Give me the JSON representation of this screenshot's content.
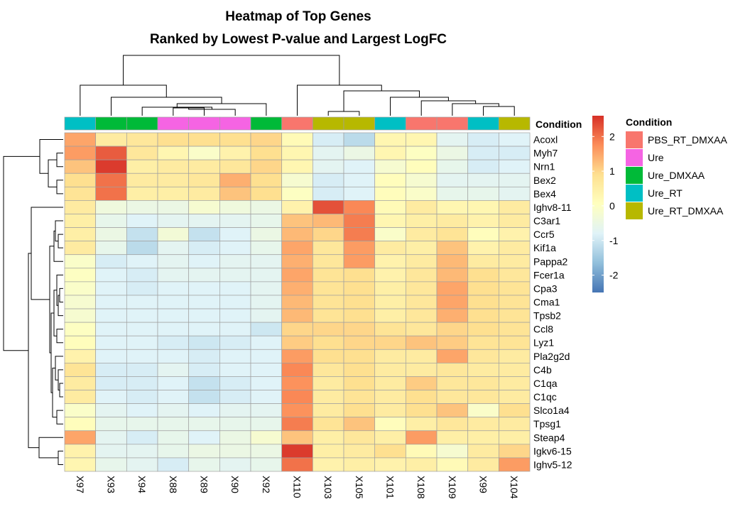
{
  "chart_data": {
    "type": "heatmap",
    "title": [
      "Heatmap of Top Genes",
      "Ranked by Lowest P-value and Largest LogFC"
    ],
    "columns": [
      "X97",
      "X93",
      "X94",
      "X88",
      "X89",
      "X90",
      "X92",
      "X110",
      "X103",
      "X105",
      "X101",
      "X108",
      "X109",
      "X99",
      "X104"
    ],
    "rows": [
      "Acoxl",
      "Myh7",
      "Nrn1",
      "Bex2",
      "Bex4",
      "Ighv8-11",
      "C3ar1",
      "Ccr5",
      "Kif1a",
      "Pappa2",
      "Fcer1a",
      "Cpa3",
      "Cma1",
      "Tpsb2",
      "Ccl8",
      "Lyz1",
      "Pla2g2d",
      "C4b",
      "C1qa",
      "C1qc",
      "Slco1a4",
      "Tpsg1",
      "Steap4",
      "Igkv6-15",
      "Ighv5-12"
    ],
    "values": [
      [
        1.5,
        0.6,
        0.7,
        0.9,
        0.9,
        0.9,
        1.0,
        0.2,
        -0.9,
        -1.2,
        0.3,
        0.3,
        -0.7,
        -0.9,
        -0.8
      ],
      [
        1.6,
        2.2,
        0.7,
        0.3,
        -0.1,
        0.4,
        0.9,
        0.3,
        -0.7,
        -0.5,
        0.3,
        0.0,
        -0.5,
        -0.9,
        -0.9
      ],
      [
        1.2,
        2.5,
        0.5,
        0.6,
        0.6,
        0.7,
        1.0,
        0.3,
        -0.7,
        -0.8,
        -0.2,
        0.1,
        -0.6,
        -0.9,
        -0.8
      ],
      [
        0.9,
        2.0,
        0.6,
        0.6,
        0.7,
        1.4,
        0.9,
        -0.2,
        -0.9,
        -0.8,
        0.1,
        -0.2,
        -0.7,
        -0.7,
        -0.7
      ],
      [
        0.8,
        2.0,
        0.5,
        0.5,
        0.6,
        1.2,
        0.9,
        0.0,
        -0.9,
        -0.8,
        0.1,
        -0.1,
        -0.6,
        -0.6,
        -0.7
      ],
      [
        0.6,
        -0.4,
        -0.5,
        -0.5,
        -0.2,
        -0.4,
        -0.5,
        0.4,
        2.3,
        1.8,
        0.2,
        0.6,
        0.3,
        0.3,
        0.6
      ],
      [
        0.5,
        -0.6,
        -0.8,
        -0.7,
        -0.7,
        -0.7,
        -0.6,
        1.2,
        1.3,
        1.9,
        0.3,
        0.5,
        0.6,
        0.4,
        0.6
      ],
      [
        0.5,
        -0.5,
        -1.1,
        -0.3,
        -1.1,
        -0.8,
        -0.5,
        1.3,
        1.0,
        1.9,
        -0.1,
        0.6,
        0.8,
        0.1,
        0.4
      ],
      [
        0.6,
        -0.6,
        -1.2,
        -0.7,
        -0.9,
        -0.8,
        -0.6,
        1.5,
        0.7,
        1.6,
        0.6,
        0.5,
        1.2,
        0.4,
        0.6
      ],
      [
        -0.1,
        -0.9,
        -0.8,
        -0.7,
        -0.8,
        -0.7,
        -0.7,
        1.4,
        0.7,
        1.6,
        0.4,
        0.6,
        1.3,
        0.6,
        0.6
      ],
      [
        0.0,
        -0.8,
        -0.9,
        -0.7,
        -0.7,
        -0.7,
        -0.7,
        1.5,
        0.8,
        0.9,
        0.4,
        0.7,
        1.3,
        0.9,
        0.7
      ],
      [
        -0.1,
        -0.8,
        -0.9,
        -0.8,
        -0.8,
        -0.8,
        -0.7,
        1.4,
        0.8,
        0.9,
        0.5,
        0.7,
        1.5,
        0.9,
        0.8
      ],
      [
        -0.2,
        -0.8,
        -0.8,
        -0.8,
        -0.8,
        -0.8,
        -0.7,
        1.3,
        0.8,
        0.9,
        0.5,
        0.7,
        1.5,
        0.9,
        0.8
      ],
      [
        -0.2,
        -0.8,
        -0.8,
        -0.8,
        -0.8,
        -0.8,
        -0.7,
        1.3,
        0.8,
        0.9,
        0.5,
        0.7,
        1.4,
        0.9,
        0.8
      ],
      [
        0.0,
        -0.8,
        -0.8,
        -0.8,
        -0.8,
        -0.8,
        -1.0,
        1.0,
        1.0,
        1.0,
        0.8,
        0.7,
        1.0,
        0.9,
        0.8
      ],
      [
        0.1,
        -0.8,
        -0.8,
        -0.9,
        -1.0,
        -0.9,
        -0.8,
        1.1,
        0.9,
        1.0,
        1.0,
        1.2,
        1.1,
        0.8,
        0.8
      ],
      [
        0.4,
        -0.8,
        -0.8,
        -0.8,
        -0.9,
        -0.8,
        -0.8,
        1.6,
        0.9,
        0.9,
        0.6,
        0.6,
        1.5,
        0.7,
        0.6
      ],
      [
        0.8,
        -0.9,
        -0.9,
        -0.7,
        -0.9,
        -0.8,
        -0.8,
        1.8,
        0.7,
        0.9,
        0.6,
        0.6,
        0.7,
        0.6,
        0.6
      ],
      [
        0.6,
        -0.9,
        -0.9,
        -0.8,
        -1.1,
        -0.9,
        -0.8,
        1.7,
        0.6,
        0.9,
        0.6,
        1.1,
        0.7,
        0.7,
        0.6
      ],
      [
        0.6,
        -0.8,
        -0.9,
        -0.8,
        -1.1,
        -0.9,
        -0.8,
        1.8,
        0.6,
        0.8,
        0.6,
        0.9,
        0.7,
        0.7,
        0.6
      ],
      [
        -0.1,
        -0.7,
        -0.8,
        -0.7,
        -0.8,
        -0.7,
        -0.7,
        1.7,
        0.6,
        0.9,
        0.6,
        0.9,
        1.2,
        -0.1,
        0.9
      ],
      [
        0.1,
        -0.6,
        -0.6,
        -0.6,
        -0.6,
        -0.6,
        -0.6,
        1.9,
        0.8,
        1.2,
        0.1,
        0.5,
        0.7,
        0.6,
        0.6
      ],
      [
        1.5,
        -0.7,
        -0.9,
        -0.6,
        -0.8,
        -0.5,
        -0.2,
        1.2,
        0.5,
        0.7,
        0.5,
        1.6,
        0.5,
        0.5,
        0.5
      ],
      [
        0.4,
        -0.7,
        -0.7,
        -0.6,
        -0.5,
        -0.5,
        -0.5,
        2.5,
        0.5,
        0.6,
        0.9,
        0.2,
        -0.2,
        0.6,
        1.0
      ],
      [
        0.3,
        -0.6,
        -0.7,
        -0.9,
        -0.6,
        -0.7,
        -0.6,
        2.0,
        0.4,
        0.5,
        0.4,
        0.5,
        0.2,
        0.6,
        1.6
      ]
    ],
    "column_conditions": [
      "Ure_RT",
      "Ure_DMXAA",
      "Ure_DMXAA",
      "Ure",
      "Ure",
      "Ure",
      "Ure_DMXAA",
      "PBS_RT_DMXAA",
      "Ure_RT_DMXAA",
      "Ure_RT_DMXAA",
      "Ure_RT",
      "PBS_RT_DMXAA",
      "PBS_RT_DMXAA",
      "Ure_RT",
      "Ure_RT_DMXAA"
    ],
    "annotation_label": "Condition",
    "legend": {
      "title": "Condition",
      "placement": "right",
      "entries": [
        {
          "name": "PBS_RT_DMXAA",
          "color": "#F8766D"
        },
        {
          "name": "Ure",
          "color": "#F564E3"
        },
        {
          "name": "Ure_DMXAA",
          "color": "#00BA38"
        },
        {
          "name": "Ure_RT",
          "color": "#00BFC4"
        },
        {
          "name": "Ure_RT_DMXAA",
          "color": "#B7B800"
        }
      ]
    },
    "colorbar": {
      "range": [
        -2.5,
        2.6
      ],
      "ticks": [
        -2,
        -1,
        0,
        1,
        2
      ],
      "colors": [
        "#4575B4",
        "#91BFDB",
        "#E0F3F8",
        "#FFFFBF",
        "#FEE090",
        "#FC8D59",
        "#D73027"
      ]
    },
    "cell_border_color": "#A0A0A0",
    "row_dendrogram": true,
    "column_dendrogram": true
  }
}
